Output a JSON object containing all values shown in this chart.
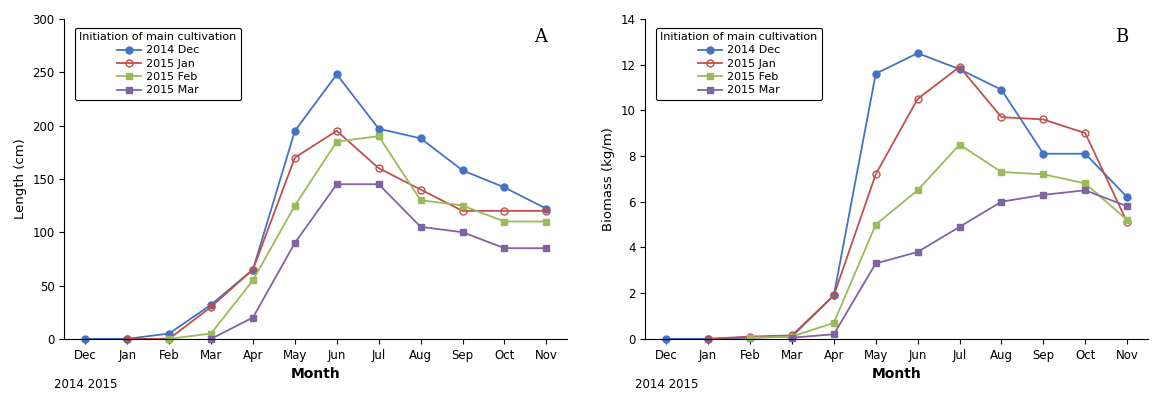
{
  "months": [
    "Dec",
    "Jan",
    "Feb",
    "Mar",
    "Apr",
    "May",
    "Jun",
    "Jul",
    "Aug",
    "Sep",
    "Oct",
    "Nov"
  ],
  "length_dec": [
    0,
    0,
    5,
    32,
    65,
    195,
    248,
    197,
    188,
    158,
    142,
    122
  ],
  "length_jan": [
    null,
    0,
    0,
    30,
    65,
    170,
    195,
    160,
    140,
    120,
    120,
    120
  ],
  "length_feb": [
    null,
    null,
    0,
    5,
    55,
    125,
    185,
    190,
    130,
    125,
    110,
    110
  ],
  "length_mar": [
    null,
    null,
    null,
    0,
    20,
    90,
    145,
    145,
    105,
    100,
    85,
    85
  ],
  "biomass_dec": [
    0,
    0,
    0.05,
    0.1,
    1.9,
    11.6,
    12.5,
    11.8,
    10.9,
    8.1,
    8.1,
    6.2
  ],
  "biomass_jan": [
    null,
    0,
    0.1,
    0.15,
    1.9,
    7.2,
    10.5,
    11.9,
    9.7,
    9.6,
    9.0,
    5.1
  ],
  "biomass_feb": [
    null,
    null,
    0.05,
    0.1,
    0.7,
    5.0,
    6.5,
    8.5,
    7.3,
    7.2,
    6.8,
    5.2
  ],
  "biomass_mar": [
    null,
    null,
    null,
    0.05,
    0.2,
    3.3,
    3.8,
    4.9,
    6.0,
    6.3,
    6.5,
    5.8
  ],
  "color_dec": "#4472c4",
  "color_jan": "#c0504d",
  "color_feb": "#9bbb59",
  "color_mar": "#8064a2",
  "legend_title": "Initiation of main cultivation",
  "panel_A_ylabel": "Length (cm)",
  "panel_B_ylabel": "Biomass (kg/m)",
  "xlabel": "Month",
  "panel_A_ylim": [
    0,
    300
  ],
  "panel_B_ylim": [
    0,
    14.0
  ],
  "panel_A_yticks": [
    0,
    50,
    100,
    150,
    200,
    250,
    300
  ],
  "panel_B_yticks": [
    0.0,
    2.0,
    4.0,
    6.0,
    8.0,
    10.0,
    12.0,
    14.0
  ],
  "label_A": "A",
  "label_B": "B"
}
